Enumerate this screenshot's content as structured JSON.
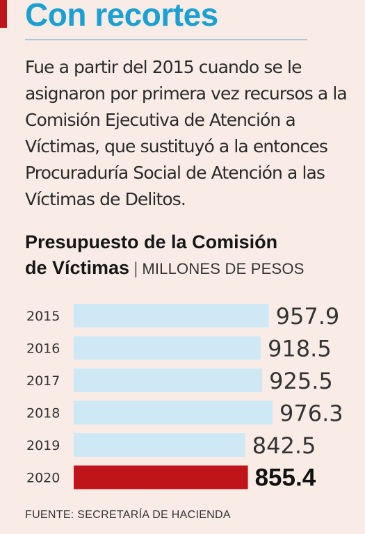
{
  "headline": "Con recortes",
  "intro": "Fue a partir del 2015 cuando se le asignaron por primera vez recursos a la Comisión Ejecutiva de Atención a Víctimas, que sustituyó a la entonces Procuraduría Social de Atención a las Víctimas de Delitos.",
  "source": "FUENTE: SECRETARÍA DE HACIENDA",
  "colors": {
    "accent_red": "#c0141b",
    "headline_blue": "#1aa0d2",
    "bar_blue": "#cfe8f6",
    "highlight_bar": "#c0141b",
    "background": "#f9ece6"
  },
  "chart_data": {
    "type": "bar",
    "orientation": "horizontal",
    "title_line1": "Presupuesto de la Comisión",
    "title_line2": "de Víctimas",
    "unit": "MILLONES DE PESOS",
    "categories": [
      "2015",
      "2016",
      "2017",
      "2018",
      "2019",
      "2020"
    ],
    "values": [
      957.9,
      918.5,
      925.5,
      976.3,
      842.5,
      855.4
    ],
    "value_labels": [
      "957.9",
      "918.5",
      "925.5",
      "976.3",
      "842.5",
      "855.4"
    ],
    "highlight_category": "2020",
    "grid": false,
    "legend": "none"
  }
}
